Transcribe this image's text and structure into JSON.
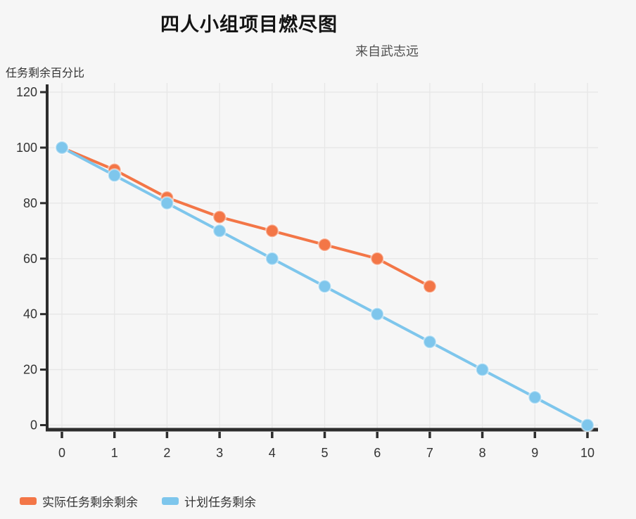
{
  "chart_data": {
    "type": "line",
    "title": "四人小组项目燃尽图",
    "subtitle": "来自武志远",
    "ylabel": "任务剩余百分比",
    "xlabel": "",
    "x": [
      0,
      1,
      2,
      3,
      4,
      5,
      6,
      7,
      8,
      9,
      10
    ],
    "xtick_labels": [
      "0",
      "1",
      "2",
      "3",
      "4",
      "5",
      "6",
      "7",
      "8",
      "9",
      "10"
    ],
    "ylim": [
      0,
      120
    ],
    "ytick_step": 20,
    "ytick_labels": [
      "0",
      "20",
      "40",
      "60",
      "80",
      "100",
      "120"
    ],
    "grid": true,
    "legend_position": "bottom-left",
    "colors": {
      "background": "#f6f6f6",
      "axis": "#2d2d2d",
      "grid": "#e7e7e7",
      "tick_label": "#333333",
      "title": "#141414",
      "subtitle": "#4f4f4f"
    },
    "series": [
      {
        "name": "实际任务剩余剩余",
        "color": "#f37647",
        "values": [
          100,
          92,
          82,
          75,
          70,
          65,
          60,
          50
        ]
      },
      {
        "name": "计划任务剩余",
        "color": "#7ec6ec",
        "values": [
          100,
          90,
          80,
          70,
          60,
          50,
          40,
          30,
          20,
          10,
          0
        ]
      }
    ]
  }
}
